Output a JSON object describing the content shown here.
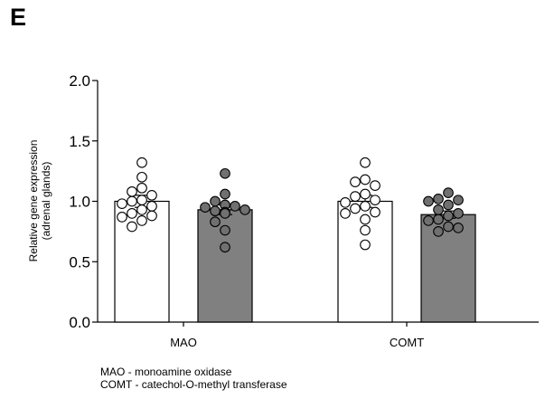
{
  "panel_letter": "E",
  "chart_data": {
    "type": "bar",
    "title": "",
    "xlabel": "",
    "ylabel_lines": [
      "Relative gene expression",
      "(adrenal glands)"
    ],
    "ylim": [
      0,
      2.0
    ],
    "yticks": [
      "0.0",
      "0.5",
      "1.0",
      "1.5",
      "2.0"
    ],
    "categories": [
      "MAO",
      "COMT"
    ],
    "series": [
      {
        "fill": "#ffffff",
        "dot_fill": "#ffffff",
        "values": [
          1.0,
          1.0
        ],
        "sem": [
          0.05,
          0.05
        ],
        "points": [
          [
            1.32,
            1.2,
            1.11,
            1.08,
            1.05,
            1.01,
            1.0,
            0.98,
            0.96,
            0.93,
            0.9,
            0.88,
            0.87,
            0.84,
            0.79
          ],
          [
            1.32,
            1.18,
            1.16,
            1.13,
            1.06,
            1.04,
            1.01,
            0.99,
            0.96,
            0.94,
            0.91,
            0.9,
            0.85,
            0.76,
            0.64
          ]
        ]
      },
      {
        "fill": "#808080",
        "dot_fill": "#707070",
        "values": [
          0.93,
          0.89
        ],
        "sem": [
          0.04,
          0.03
        ],
        "points": [
          [
            1.23,
            1.06,
            1.0,
            0.97,
            0.96,
            0.95,
            0.93,
            0.92,
            0.91,
            0.9,
            0.83,
            0.76,
            0.62
          ],
          [
            1.07,
            1.02,
            1.01,
            1.0,
            0.97,
            0.93,
            0.9,
            0.88,
            0.85,
            0.84,
            0.79,
            0.78,
            0.75
          ]
        ]
      }
    ]
  },
  "footnotes": [
    "MAO - monoamine oxidase",
    "COMT - catechol-O-methyl transferase"
  ]
}
